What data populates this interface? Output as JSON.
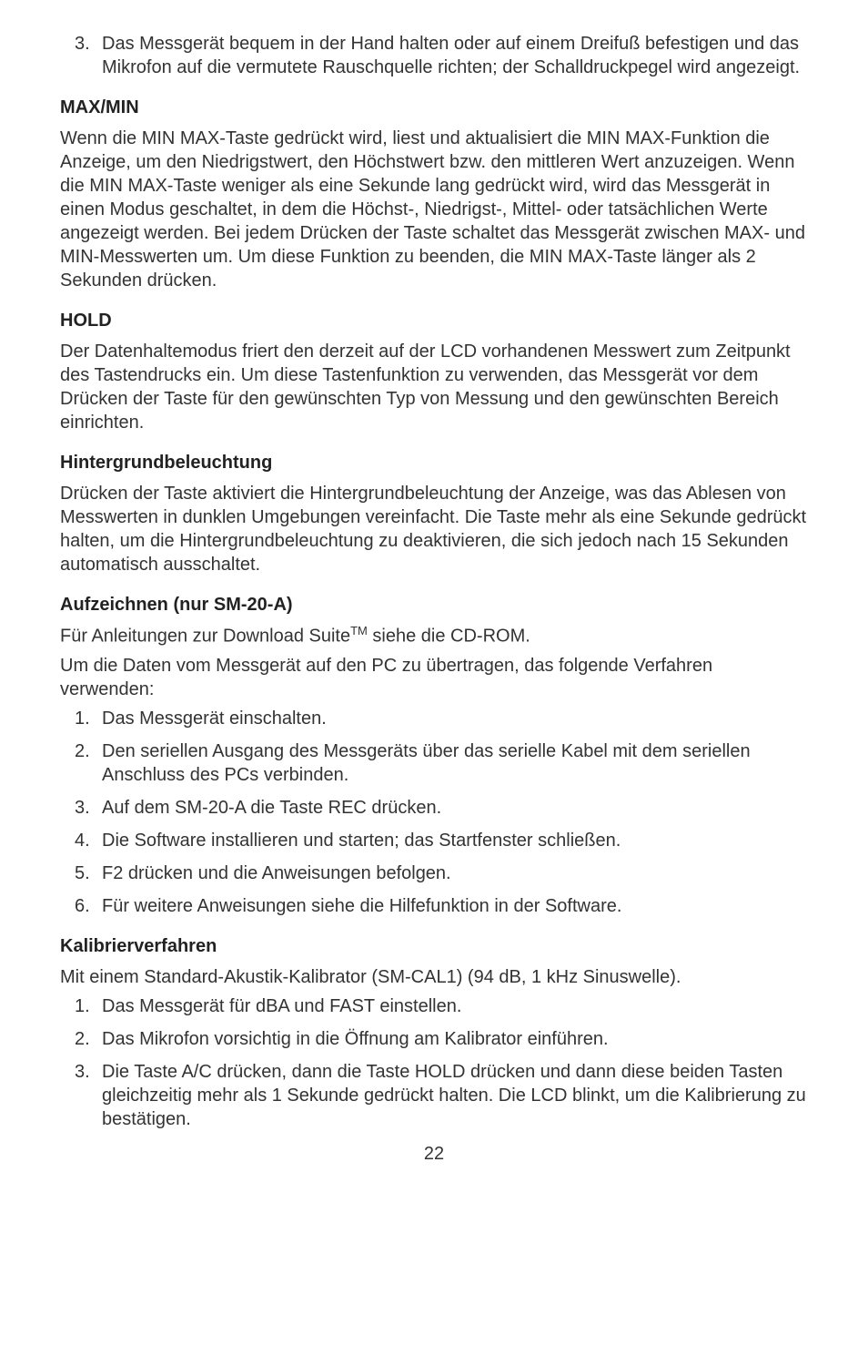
{
  "intro_list": {
    "item3": "Das Messgerät bequem in der Hand halten oder auf einem Dreifuß befestigen und das Mikrofon auf die vermutete Rauschquelle richten; der Schalldruckpegel wird angezeigt."
  },
  "maxmin": {
    "heading": "MAX/MIN",
    "body": "Wenn die MIN MAX-Taste gedrückt wird, liest und aktualisiert die MIN MAX-Funktion die Anzeige, um den Niedrigstwert, den Höchstwert bzw. den mittleren Wert anzuzeigen. Wenn die MIN MAX-Taste weniger als eine Sekunde lang gedrückt wird, wird das Messgerät in einen Modus geschaltet, in dem die Höchst-, Niedrigst-, Mittel- oder tatsächlichen Werte angezeigt werden. Bei jedem Drücken der Taste schaltet das Messgerät zwischen MAX- und MIN-Messwerten um. Um diese Funktion zu beenden, die MIN MAX-Taste länger als 2 Sekunden drücken."
  },
  "hold": {
    "heading": "HOLD",
    "body": "Der Datenhaltemodus friert den derzeit auf der LCD vorhandenen Messwert zum Zeitpunkt des Tastendrucks ein. Um diese Tastenfunktion zu verwenden, das Messgerät vor dem Drücken der Taste für den gewünschten Typ von Messung und den gewünschten Bereich einrichten."
  },
  "backlight": {
    "heading": "Hintergrundbeleuchtung",
    "body": "Drücken der Taste aktiviert die Hintergrundbeleuchtung der Anzeige, was das Ablesen von Messwerten in dunklen Umgebungen vereinfacht. Die Taste mehr als eine Sekunde gedrückt halten, um die Hintergrundbeleuchtung zu deaktivieren, die sich jedoch nach 15 Sekunden automatisch ausschaltet."
  },
  "record": {
    "heading": "Aufzeichnen (nur SM-20-A)",
    "p1a": "Für Anleitungen zur Download Suite",
    "p1b": " siehe die CD-ROM.",
    "p2": "Um die Daten vom Messgerät auf den PC zu übertragen, das folgende Verfahren verwenden:",
    "steps": {
      "s1": "Das Messgerät einschalten.",
      "s2": "Den seriellen Ausgang des Messgeräts über das serielle Kabel mit dem seriellen Anschluss des PCs verbinden.",
      "s3": "Auf dem SM-20-A die Taste REC drücken.",
      "s4": "Die Software installieren und starten; das Startfenster schließen.",
      "s5": "F2 drücken und die Anweisungen befolgen.",
      "s6": "Für weitere Anweisungen siehe die Hilfefunktion in der Software."
    }
  },
  "calibration": {
    "heading": "Kalibrierverfahren",
    "p1": "Mit einem Standard-Akustik-Kalibrator (SM-CAL1) (94 dB, 1 kHz Sinuswelle).",
    "steps": {
      "s1": "Das Messgerät für dBA und FAST einstellen.",
      "s2": "Das Mikrofon vorsichtig in die Öffnung am Kalibrator einführen.",
      "s3": "Die Taste A/C drücken, dann die Taste HOLD drücken und dann diese beiden Tasten gleichzeitig mehr als 1 Sekunde gedrückt halten. Die LCD blinkt, um die Kalibrierung zu bestätigen."
    }
  },
  "page_number": "22"
}
